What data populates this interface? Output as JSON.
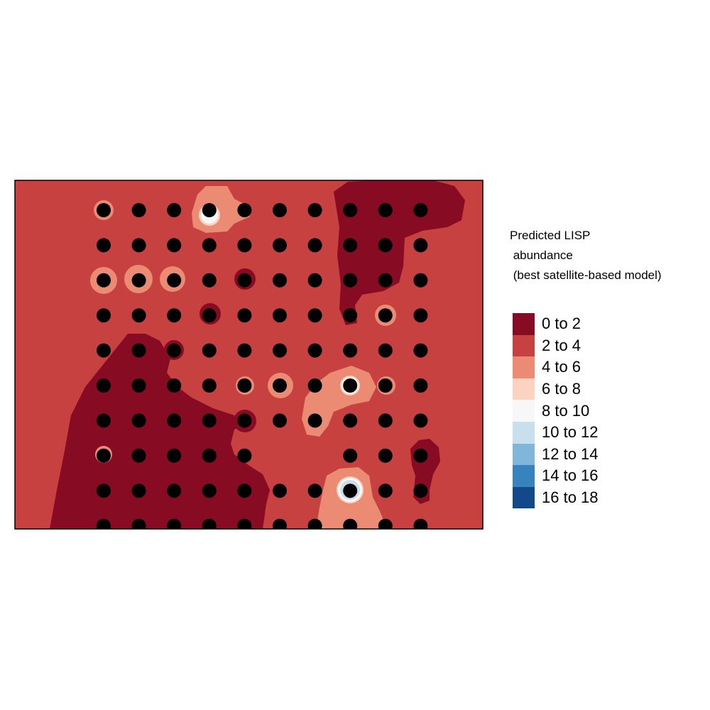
{
  "legend": {
    "title_lines": [
      "Predicted LISP",
      " abundance",
      " (best satellite-based model)"
    ],
    "classes": [
      {
        "label": "0 to 2",
        "color": "#870B23"
      },
      {
        "label": "2 to 4",
        "color": "#C6413F"
      },
      {
        "label": "4 to 6",
        "color": "#EB8B73"
      },
      {
        "label": "6 to 8",
        "color": "#FBD3C0"
      },
      {
        "label": "8 to 10",
        "color": "#F7F7F7"
      },
      {
        "label": "10 to 12",
        "color": "#C8DFEE"
      },
      {
        "label": "12 to 14",
        "color": "#7FB6D9"
      },
      {
        "label": "14 to 16",
        "color": "#3783BE"
      },
      {
        "label": "16 to 18",
        "color": "#12498A"
      }
    ]
  },
  "map": {
    "background_class": "2 to 4",
    "sample_points": {
      "rows": 10,
      "cols": 10,
      "missing": [
        [
          7,
          5
        ],
        [
          7,
          6
        ]
      ],
      "color": "#000000"
    }
  }
}
